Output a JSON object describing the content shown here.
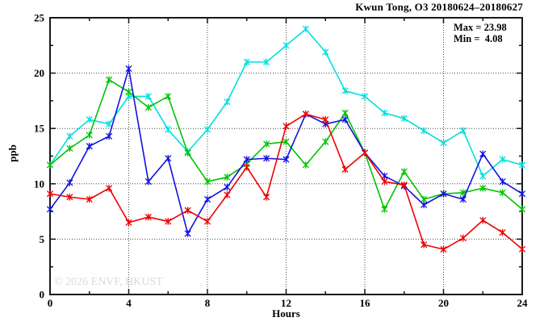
{
  "title": "Kwun Tong, O3 20180624–20180627",
  "stats": {
    "max_label": "Max = 23.98",
    "min_label": "Min =  4.08"
  },
  "watermark": "© 2026 ENVF, HKUST",
  "chart_data": {
    "type": "line",
    "title": "Kwun Tong, O3 20180624–20180627",
    "xlabel": "Hours",
    "ylabel": "ppb",
    "xlim": [
      0,
      24
    ],
    "ylim": [
      0,
      25
    ],
    "x_major_ticks": [
      0,
      4,
      8,
      12,
      16,
      20,
      24
    ],
    "x_minor_step": 2,
    "y_major_ticks": [
      0,
      5,
      10,
      15,
      20,
      25
    ],
    "y_minor_step": 2.5,
    "grid": "dotted lines at interior major ticks, mirrored inward ticks on all four sides",
    "legend_position": "none",
    "annotations": {
      "max": 23.98,
      "min": 4.08
    },
    "x": [
      0,
      1,
      2,
      3,
      4,
      5,
      6,
      7,
      8,
      9,
      10,
      11,
      12,
      13,
      14,
      15,
      16,
      17,
      18,
      19,
      20,
      21,
      22,
      23,
      24
    ],
    "series": [
      {
        "name": "cyan-series",
        "color": "#00dfdf",
        "values": [
          11.7,
          14.3,
          15.8,
          15.4,
          17.9,
          17.9,
          14.9,
          12.9,
          14.9,
          17.4,
          21.0,
          21.0,
          22.5,
          23.98,
          21.9,
          18.4,
          17.9,
          16.4,
          15.9,
          14.8,
          13.7,
          14.8,
          10.7,
          12.2,
          11.7
        ]
      },
      {
        "name": "green-series",
        "color": "#00c400",
        "values": [
          11.7,
          13.2,
          14.4,
          19.4,
          18.3,
          16.9,
          17.9,
          12.8,
          10.2,
          10.6,
          11.8,
          13.6,
          13.8,
          11.7,
          13.8,
          16.4,
          12.8,
          7.7,
          11.1,
          8.6,
          9.1,
          9.2,
          9.6,
          9.2,
          7.7
        ]
      },
      {
        "name": "blue-series",
        "color": "#1212e0",
        "values": [
          7.7,
          10.1,
          13.4,
          14.3,
          20.4,
          10.2,
          12.3,
          5.5,
          8.6,
          9.7,
          12.2,
          12.3,
          12.2,
          16.3,
          15.4,
          15.8,
          12.8,
          10.7,
          9.8,
          8.1,
          9.1,
          8.6,
          12.7,
          10.2,
          9.1
        ]
      },
      {
        "name": "red-series",
        "color": "#ee0000",
        "values": [
          9.1,
          8.8,
          8.6,
          9.6,
          6.5,
          7.0,
          6.6,
          7.6,
          6.6,
          9.0,
          11.5,
          8.8,
          15.2,
          16.3,
          15.8,
          11.3,
          12.8,
          10.2,
          9.9,
          4.5,
          4.08,
          5.1,
          6.7,
          5.6,
          4.1
        ]
      }
    ]
  }
}
